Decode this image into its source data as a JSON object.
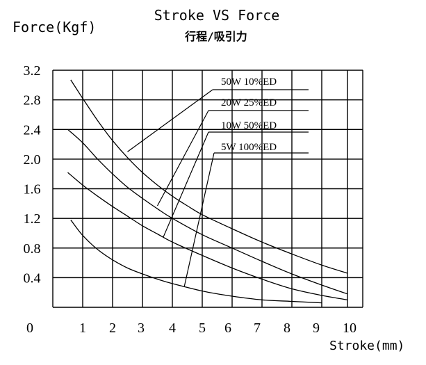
{
  "chart_data": {
    "type": "line",
    "title": "Stroke VS  Force",
    "subtitle": "行程/吸引力",
    "ylabel": "Force(Kgf)",
    "xlabel": "Stroke(mm)",
    "xlim": [
      0,
      10
    ],
    "ylim": [
      0,
      3.2
    ],
    "grid": true,
    "x_ticks": [
      {
        "value": 0,
        "label": "0"
      },
      {
        "value": 1,
        "label": "1"
      },
      {
        "value": 2,
        "label": "2"
      },
      {
        "value": 3,
        "label": "3"
      },
      {
        "value": 4,
        "label": "4"
      },
      {
        "value": 5,
        "label": "5"
      },
      {
        "value": 6,
        "label": "6"
      },
      {
        "value": 7,
        "label": "7"
      },
      {
        "value": 8,
        "label": "8"
      },
      {
        "value": 9,
        "label": "9"
      },
      {
        "value": 10,
        "label": "10"
      }
    ],
    "y_ticks": [
      {
        "value": 0.4,
        "label": "0.4"
      },
      {
        "value": 0.8,
        "label": "0.8"
      },
      {
        "value": 1.2,
        "label": "1.2"
      },
      {
        "value": 1.6,
        "label": "1.6"
      },
      {
        "value": 2.0,
        "label": "2.0"
      },
      {
        "value": 2.4,
        "label": "2.4"
      },
      {
        "value": 2.8,
        "label": "2.8"
      },
      {
        "value": 3.2,
        "label": "3.2"
      }
    ],
    "series": [
      {
        "name": "50W   10%ED",
        "x": [
          0.6,
          1.0,
          1.5,
          2.0,
          2.5,
          3.0,
          3.5,
          4.0,
          4.5,
          5.0,
          6.0,
          7.0,
          8.0,
          9.0,
          10.0
        ],
        "y": [
          3.07,
          2.82,
          2.52,
          2.25,
          2.02,
          1.82,
          1.65,
          1.5,
          1.37,
          1.25,
          1.06,
          0.88,
          0.72,
          0.57,
          0.46
        ]
      },
      {
        "name": "20W   25%ED",
        "x": [
          0.5,
          1.0,
          1.5,
          2.0,
          2.5,
          3.0,
          3.5,
          4.0,
          5.0,
          6.0,
          7.0,
          8.0,
          9.0,
          10.0
        ],
        "y": [
          2.4,
          2.22,
          2.0,
          1.8,
          1.62,
          1.47,
          1.33,
          1.2,
          0.98,
          0.8,
          0.62,
          0.45,
          0.3,
          0.18
        ]
      },
      {
        "name": "10W   50%ED",
        "x": [
          0.5,
          1.0,
          1.5,
          2.0,
          2.5,
          3.0,
          3.5,
          4.0,
          5.0,
          6.0,
          7.0,
          8.0,
          9.0,
          10.0
        ],
        "y": [
          1.82,
          1.65,
          1.5,
          1.36,
          1.23,
          1.1,
          0.99,
          0.88,
          0.7,
          0.53,
          0.38,
          0.25,
          0.16,
          0.1
        ]
      },
      {
        "name": "5W   100%ED",
        "x": [
          0.6,
          1.0,
          1.5,
          2.0,
          2.5,
          3.0,
          3.5,
          4.0,
          5.0,
          6.0,
          7.0,
          8.0,
          9.0
        ],
        "y": [
          1.18,
          0.97,
          0.78,
          0.64,
          0.53,
          0.45,
          0.38,
          0.32,
          0.22,
          0.15,
          0.1,
          0.08,
          0.06
        ]
      }
    ],
    "legend_labels": [
      {
        "series": "50W   10%ED",
        "anchor": {
          "x": 2.5,
          "y": 2.1
        }
      },
      {
        "series": "20W   25%ED",
        "anchor": {
          "x": 3.5,
          "y": 1.37
        }
      },
      {
        "series": "10W   50%ED",
        "anchor": {
          "x": 3.7,
          "y": 0.95
        }
      },
      {
        "series": "5W   100%ED",
        "anchor": {
          "x": 4.4,
          "y": 0.28
        }
      }
    ],
    "legend_placement": "right, with leader lines to curves"
  }
}
